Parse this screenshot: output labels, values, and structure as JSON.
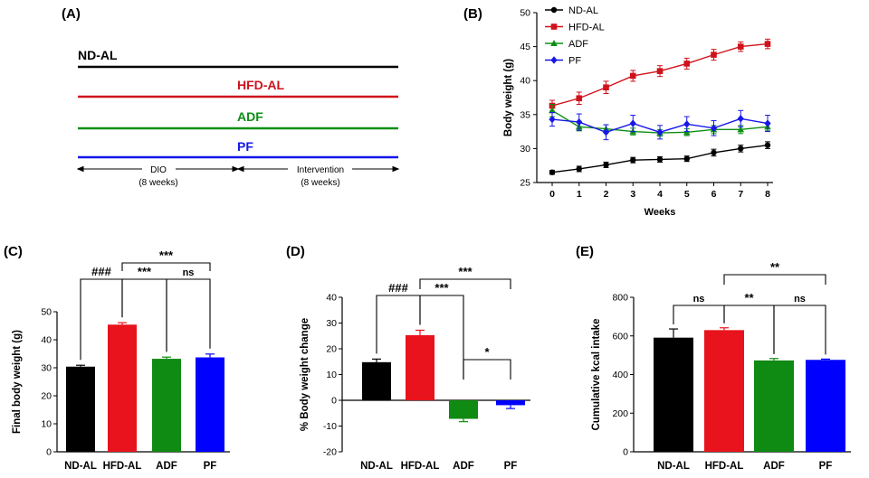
{
  "colors": {
    "ndal": "#000000",
    "hfdal": "#d0121b",
    "adf": "#0c8f13",
    "pf": "#1717e8",
    "ndal_bar": "#000000",
    "hfdal_bar": "#e8131c",
    "adf_bar": "#0f8a12",
    "pf_bar": "#0000ff"
  },
  "panels": {
    "a": {
      "label": "(A)",
      "groups": [
        "ND-AL",
        "HFD-AL",
        "ADF",
        "PF"
      ],
      "phase1": "DIO",
      "phase1_dur": "(8 weeks)",
      "phase2": "Intervention",
      "phase2_dur": "(8 weeks)"
    },
    "b": {
      "label": "(B)"
    },
    "c": {
      "label": "(C)"
    },
    "d": {
      "label": "(D)"
    },
    "e": {
      "label": "(E)"
    }
  },
  "chart_data": [
    {
      "panel": "B",
      "type": "line",
      "xlabel": "Weeks",
      "ylabel": "Body weight (g)",
      "x": [
        0,
        1,
        2,
        3,
        4,
        5,
        6,
        7,
        8
      ],
      "xlim": [
        0,
        8
      ],
      "ylim": [
        25,
        50
      ],
      "yticks": [
        25,
        30,
        35,
        40,
        45,
        50
      ],
      "legend": "top-left",
      "series": [
        {
          "name": "ND-AL",
          "marker": "circle",
          "values": [
            26.5,
            27.0,
            27.6,
            28.3,
            28.4,
            28.5,
            29.4,
            30.0,
            30.5
          ],
          "err": [
            0.3,
            0.4,
            0.4,
            0.4,
            0.4,
            0.4,
            0.5,
            0.5,
            0.5
          ]
        },
        {
          "name": "HFD-AL",
          "marker": "square",
          "values": [
            36.3,
            37.4,
            39.0,
            40.7,
            41.4,
            42.5,
            43.8,
            45.0,
            45.4
          ],
          "err": [
            0.8,
            0.9,
            0.9,
            0.8,
            0.8,
            0.8,
            0.8,
            0.7,
            0.7
          ]
        },
        {
          "name": "ADF",
          "marker": "triangle",
          "values": [
            35.6,
            33.2,
            32.9,
            32.5,
            32.3,
            32.4,
            32.8,
            32.8,
            33.2
          ],
          "err": [
            0.9,
            0.6,
            0.6,
            0.5,
            0.5,
            0.5,
            0.6,
            0.6,
            0.6
          ]
        },
        {
          "name": "PF",
          "marker": "diamond",
          "values": [
            34.3,
            33.9,
            32.4,
            33.7,
            32.4,
            33.6,
            33.0,
            34.4,
            33.7
          ],
          "err": [
            1.0,
            1.2,
            1.1,
            1.2,
            1.0,
            1.1,
            1.1,
            1.2,
            1.2
          ]
        }
      ]
    },
    {
      "panel": "C",
      "type": "bar",
      "ylabel": "Final body weight (g)",
      "categories": [
        "ND-AL",
        "HFD-AL",
        "ADF",
        "PF"
      ],
      "values": [
        30.4,
        45.4,
        33.2,
        33.7
      ],
      "err": [
        0.5,
        0.7,
        0.6,
        1.2
      ],
      "ylim": [
        0,
        50
      ],
      "yticks": [
        0,
        10,
        20,
        30,
        40,
        50
      ],
      "annotations": [
        {
          "from": 0,
          "to": 1,
          "text": "###",
          "level": 1
        },
        {
          "from": 1,
          "to": 2,
          "text": "***",
          "level": 1
        },
        {
          "from": 2,
          "to": 3,
          "text": "ns",
          "level": 1
        },
        {
          "from": 1,
          "to": 3,
          "text": "***",
          "level": 2
        }
      ]
    },
    {
      "panel": "D",
      "type": "bar",
      "ylabel": "% Body weight change",
      "categories": [
        "ND-AL",
        "HFD-AL",
        "ADF",
        "PF"
      ],
      "values": [
        14.8,
        25.3,
        -7.2,
        -1.9
      ],
      "err": [
        1.2,
        1.9,
        1.1,
        1.3
      ],
      "ylim": [
        -20,
        40
      ],
      "yticks": [
        -20,
        -10,
        0,
        10,
        20,
        30,
        40
      ],
      "annotations": [
        {
          "from": 0,
          "to": 1,
          "text": "###",
          "level": 1
        },
        {
          "from": 1,
          "to": 2,
          "text": "***",
          "level": 1
        },
        {
          "from": 2,
          "to": 3,
          "text": "*",
          "level": 0
        },
        {
          "from": 1,
          "to": 3,
          "text": "***",
          "level": 2
        }
      ]
    },
    {
      "panel": "E",
      "type": "bar",
      "ylabel": "Cumulative kcal intake",
      "categories": [
        "ND-AL",
        "HFD-AL",
        "ADF",
        "PF"
      ],
      "values": [
        591,
        630,
        473,
        476
      ],
      "err": [
        45,
        12,
        10,
        4
      ],
      "ylim": [
        0,
        800
      ],
      "yticks": [
        0,
        200,
        400,
        600,
        800
      ],
      "annotations": [
        {
          "from": 0,
          "to": 1,
          "text": "ns",
          "level": 1
        },
        {
          "from": 2,
          "to": 3,
          "text": "ns",
          "level": 1
        },
        {
          "from": 1,
          "to": 2,
          "text": "**",
          "level": 1
        },
        {
          "from": 1,
          "to": 3,
          "text": "**",
          "level": 2
        }
      ]
    }
  ]
}
